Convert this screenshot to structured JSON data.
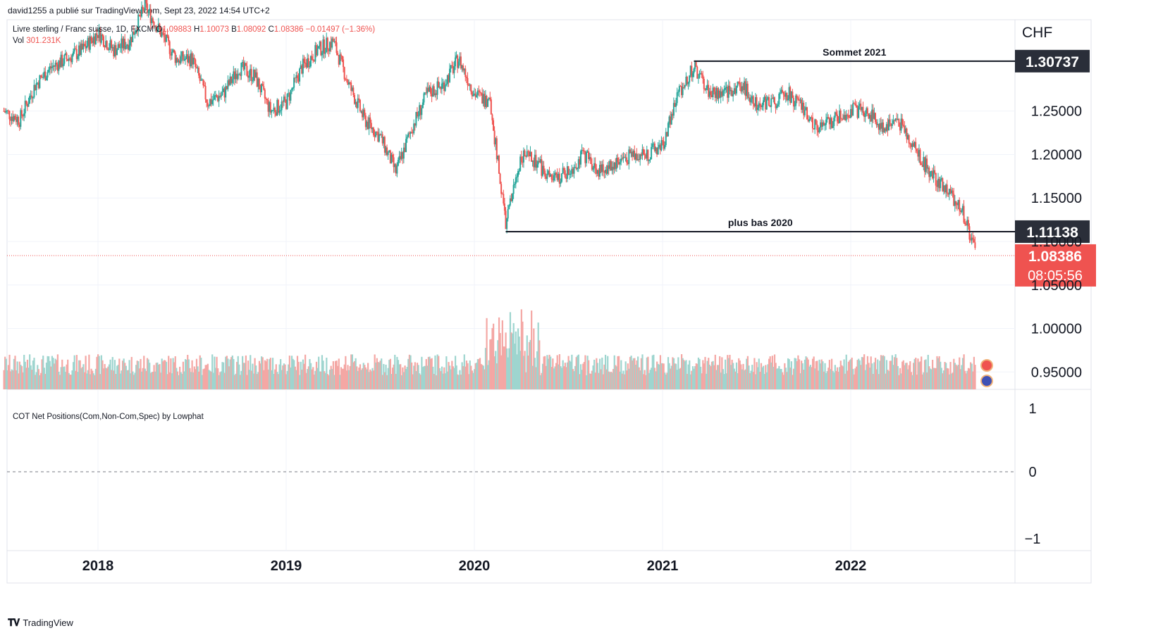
{
  "header": {
    "published_by": "david1255 a publié sur TradingView.com, Sept 23, 2022 14:54 UTC+2"
  },
  "legend": {
    "symbol": "Livre sterling / Franc suisse, 1D, FXCM",
    "open_label": "O",
    "open": "1.09883",
    "high_label": "H",
    "high": "1.10073",
    "low_label": "B",
    "low": "1.08092",
    "close_label": "C",
    "close": "1.08386",
    "change": "−0.01497 (−1.36%)",
    "vol_label": "Vol",
    "vol": "301.231K"
  },
  "currency": "CHF",
  "cot_indicator": {
    "label": "COT Net Positions(Com,Non-Com,Spec) by Lowphat",
    "ticks": [
      "1",
      "0",
      "−1"
    ]
  },
  "footer": {
    "brand": "TradingView"
  },
  "colors": {
    "up": "#26a69a",
    "down": "#ef5350",
    "vol_up": "#9ed5cf",
    "vol_down": "#f4a7a4",
    "level_tag": "#2a2e39",
    "price_tag": "#ef5350",
    "grid": "#f0f3fa"
  },
  "chart_data": {
    "type": "candlestick",
    "interval": "1D",
    "x_labels": [
      "2018",
      "2019",
      "2020",
      "2021",
      "2022"
    ],
    "y_ticks": [
      "1.25000",
      "1.20000",
      "1.15000",
      "1.10000",
      "1.05000",
      "1.00000",
      "0.95000"
    ],
    "ylim": [
      0.93,
      1.355
    ],
    "grid": true,
    "annotations": [
      {
        "label": "Sommet 2021",
        "value": 1.30737,
        "tag": "1.30737",
        "from": "2021-03"
      },
      {
        "label": "plus bas 2020",
        "value": 1.11138,
        "tag": "1.11138",
        "from": "2020-03"
      }
    ],
    "last_price": {
      "value": 1.08386,
      "tag": "1.08386",
      "countdown": "08:05:56"
    },
    "weekly_close_approx": [
      [
        "2017-07",
        1.25
      ],
      [
        "2017-08",
        1.24
      ],
      [
        "2017-09",
        1.28
      ],
      [
        "2017-10",
        1.3
      ],
      [
        "2017-11",
        1.31
      ],
      [
        "2017-12",
        1.32
      ],
      [
        "2018-01",
        1.34
      ],
      [
        "2018-02",
        1.32
      ],
      [
        "2018-03",
        1.33
      ],
      [
        "2018-04",
        1.37
      ],
      [
        "2018-05",
        1.34
      ],
      [
        "2018-06",
        1.31
      ],
      [
        "2018-07",
        1.31
      ],
      [
        "2018-08",
        1.26
      ],
      [
        "2018-09",
        1.27
      ],
      [
        "2018-10",
        1.3
      ],
      [
        "2018-11",
        1.29
      ],
      [
        "2018-12",
        1.25
      ],
      [
        "2019-01",
        1.26
      ],
      [
        "2019-02",
        1.3
      ],
      [
        "2019-03",
        1.32
      ],
      [
        "2019-04",
        1.33
      ],
      [
        "2019-05",
        1.28
      ],
      [
        "2019-06",
        1.24
      ],
      [
        "2019-07",
        1.22
      ],
      [
        "2019-08",
        1.18
      ],
      [
        "2019-09",
        1.23
      ],
      [
        "2019-10",
        1.27
      ],
      [
        "2019-11",
        1.28
      ],
      [
        "2019-12",
        1.31
      ],
      [
        "2020-01",
        1.27
      ],
      [
        "2020-02",
        1.26
      ],
      [
        "2020-03",
        1.12
      ],
      [
        "2020-04",
        1.2
      ],
      [
        "2020-05",
        1.19
      ],
      [
        "2020-06",
        1.17
      ],
      [
        "2020-07",
        1.18
      ],
      [
        "2020-08",
        1.2
      ],
      [
        "2020-09",
        1.18
      ],
      [
        "2020-10",
        1.19
      ],
      [
        "2020-11",
        1.2
      ],
      [
        "2020-12",
        1.2
      ],
      [
        "2021-01",
        1.21
      ],
      [
        "2021-02",
        1.27
      ],
      [
        "2021-03",
        1.3
      ],
      [
        "2021-04",
        1.27
      ],
      [
        "2021-05",
        1.27
      ],
      [
        "2021-06",
        1.28
      ],
      [
        "2021-07",
        1.26
      ],
      [
        "2021-08",
        1.26
      ],
      [
        "2021-09",
        1.27
      ],
      [
        "2021-10",
        1.25
      ],
      [
        "2021-11",
        1.23
      ],
      [
        "2021-12",
        1.24
      ],
      [
        "2022-01",
        1.25
      ],
      [
        "2022-02",
        1.25
      ],
      [
        "2022-03",
        1.23
      ],
      [
        "2022-04",
        1.24
      ],
      [
        "2022-05",
        1.21
      ],
      [
        "2022-06",
        1.18
      ],
      [
        "2022-07",
        1.16
      ],
      [
        "2022-08",
        1.14
      ],
      [
        "2022-09",
        1.08386
      ]
    ]
  }
}
